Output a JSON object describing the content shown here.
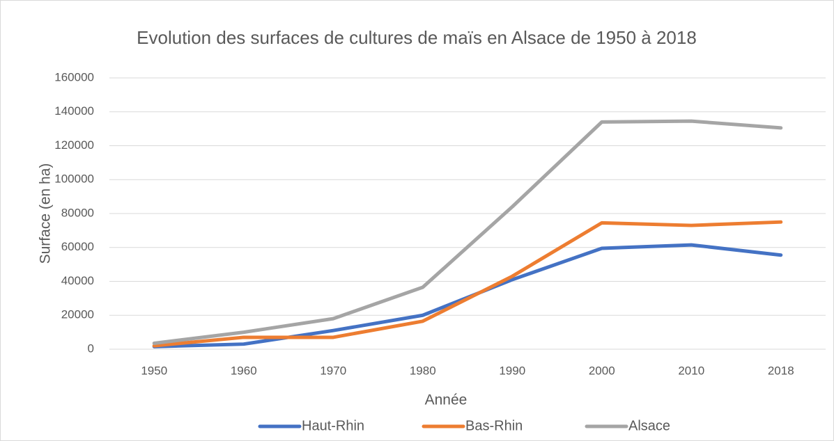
{
  "chart_data": {
    "type": "line",
    "title": "Evolution des surfaces de cultures de maïs en Alsace de 1950 à 2018",
    "x_label": "Année",
    "y_label": "Surface (en ha)",
    "categories": [
      "1950",
      "1960",
      "1970",
      "1980",
      "1990",
      "2000",
      "2010",
      "2018"
    ],
    "series": [
      {
        "name": "Haut-Rhin",
        "color": "#4472c4",
        "values": [
          1500,
          3000,
          11000,
          20000,
          41000,
          59500,
          61500,
          55500
        ]
      },
      {
        "name": "Bas-Rhin",
        "color": "#ed7d31",
        "values": [
          2000,
          7000,
          7000,
          16500,
          43000,
          74500,
          73000,
          75000
        ]
      },
      {
        "name": "Alsace",
        "color": "#a5a5a5",
        "values": [
          3500,
          10000,
          18000,
          36500,
          84000,
          134000,
          134500,
          130500
        ]
      }
    ],
    "ylim": [
      0,
      160000
    ],
    "yticks": [
      0,
      20000,
      40000,
      60000,
      80000,
      100000,
      120000,
      140000,
      160000
    ],
    "grid": true,
    "legend": "bottom"
  }
}
